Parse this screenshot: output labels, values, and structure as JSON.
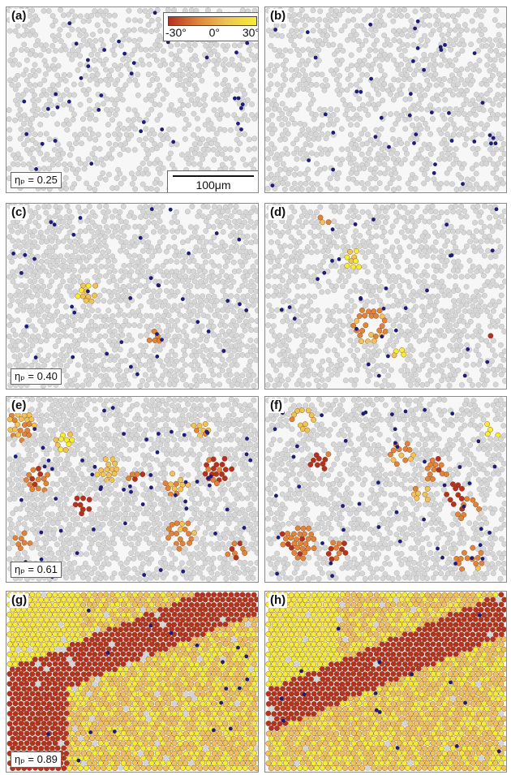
{
  "colorbar": {
    "labels": [
      "-30°",
      "0°",
      "30°"
    ],
    "colors": [
      "#b5321e",
      "#e0843a",
      "#efc455",
      "#f4ee32"
    ]
  },
  "scalebar": {
    "label": "100μm"
  },
  "particle_colors": {
    "disordered": "#d6d6d6",
    "marker": "#1e1e7a",
    "background": "#f7f7f7"
  },
  "panels": [
    {
      "label": "(a)",
      "eta_text": "ηₚ = 0.25"
    },
    {
      "label": "(b)",
      "eta_text": ""
    },
    {
      "label": "(c)",
      "eta_text": "ηₚ = 0.40"
    },
    {
      "label": "(d)",
      "eta_text": ""
    },
    {
      "label": "(e)",
      "eta_text": "ηₚ = 0.61"
    },
    {
      "label": "(f)",
      "eta_text": ""
    },
    {
      "label": "(g)",
      "eta_text": "ηₚ = 0.89"
    },
    {
      "label": "(h)",
      "eta_text": ""
    }
  ]
}
